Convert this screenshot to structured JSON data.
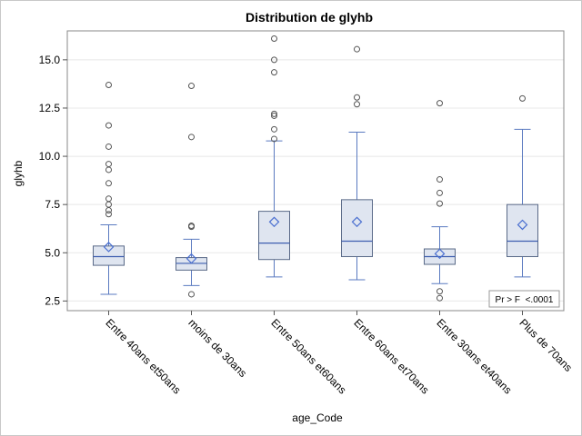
{
  "chart_data": {
    "type": "box",
    "title": "Distribution de glyhb",
    "xlabel": "age_Code",
    "ylabel": "glyhb",
    "ylim": [
      2.0,
      16.5
    ],
    "yticks": [
      "2.5",
      "5.0",
      "7.5",
      "10.0",
      "12.5",
      "15.0"
    ],
    "ytick_values": [
      2.5,
      5.0,
      7.5,
      10.0,
      12.5,
      15.0
    ],
    "grid": true,
    "inset_text": "Pr > F  <.0001",
    "inset_position": "bottom-right",
    "colors": {
      "box_fill": "#dfe5f0",
      "box_stroke": "#5a6a88",
      "whisker": "#5a7ac0",
      "median": "#3f5fb0",
      "mean_marker": "#4a6fd0",
      "outlier": "#555555",
      "grid": "#e8e8e8"
    },
    "categories": [
      "Entre 40ans et50ans",
      "moins de 30ans",
      "Entre 50ans et60ans",
      "Entre 60ans et70ans",
      "Entre 30ans et40ans",
      "Plus de 70ans"
    ],
    "boxes": [
      {
        "whisker_low": 2.85,
        "q1": 4.35,
        "median": 4.8,
        "q3": 5.35,
        "whisker_high": 6.45,
        "mean": 5.3,
        "outliers": [
          13.7,
          11.6,
          10.5,
          9.6,
          9.3,
          8.6,
          7.8,
          7.5,
          7.2,
          7.0
        ]
      },
      {
        "whisker_low": 3.3,
        "q1": 4.1,
        "median": 4.45,
        "q3": 4.75,
        "whisker_high": 5.7,
        "mean": 4.7,
        "outliers": [
          13.65,
          11.0,
          6.4,
          6.35,
          2.85
        ]
      },
      {
        "whisker_low": 3.75,
        "q1": 4.65,
        "median": 5.5,
        "q3": 7.15,
        "whisker_high": 10.8,
        "mean": 6.6,
        "outliers": [
          16.1,
          15.0,
          14.35,
          12.2,
          12.1,
          11.4,
          10.9
        ]
      },
      {
        "whisker_low": 3.6,
        "q1": 4.8,
        "median": 5.6,
        "q3": 7.75,
        "whisker_high": 11.25,
        "mean": 6.6,
        "outliers": [
          15.55,
          13.05,
          12.7
        ]
      },
      {
        "whisker_low": 3.4,
        "q1": 4.4,
        "median": 4.8,
        "q3": 5.2,
        "whisker_high": 6.35,
        "mean": 4.95,
        "outliers": [
          12.75,
          8.8,
          8.1,
          7.55,
          3.0,
          2.65
        ]
      },
      {
        "whisker_low": 3.75,
        "q1": 4.8,
        "median": 5.6,
        "q3": 7.5,
        "whisker_high": 11.4,
        "mean": 6.45,
        "outliers": [
          13.0
        ]
      }
    ]
  }
}
